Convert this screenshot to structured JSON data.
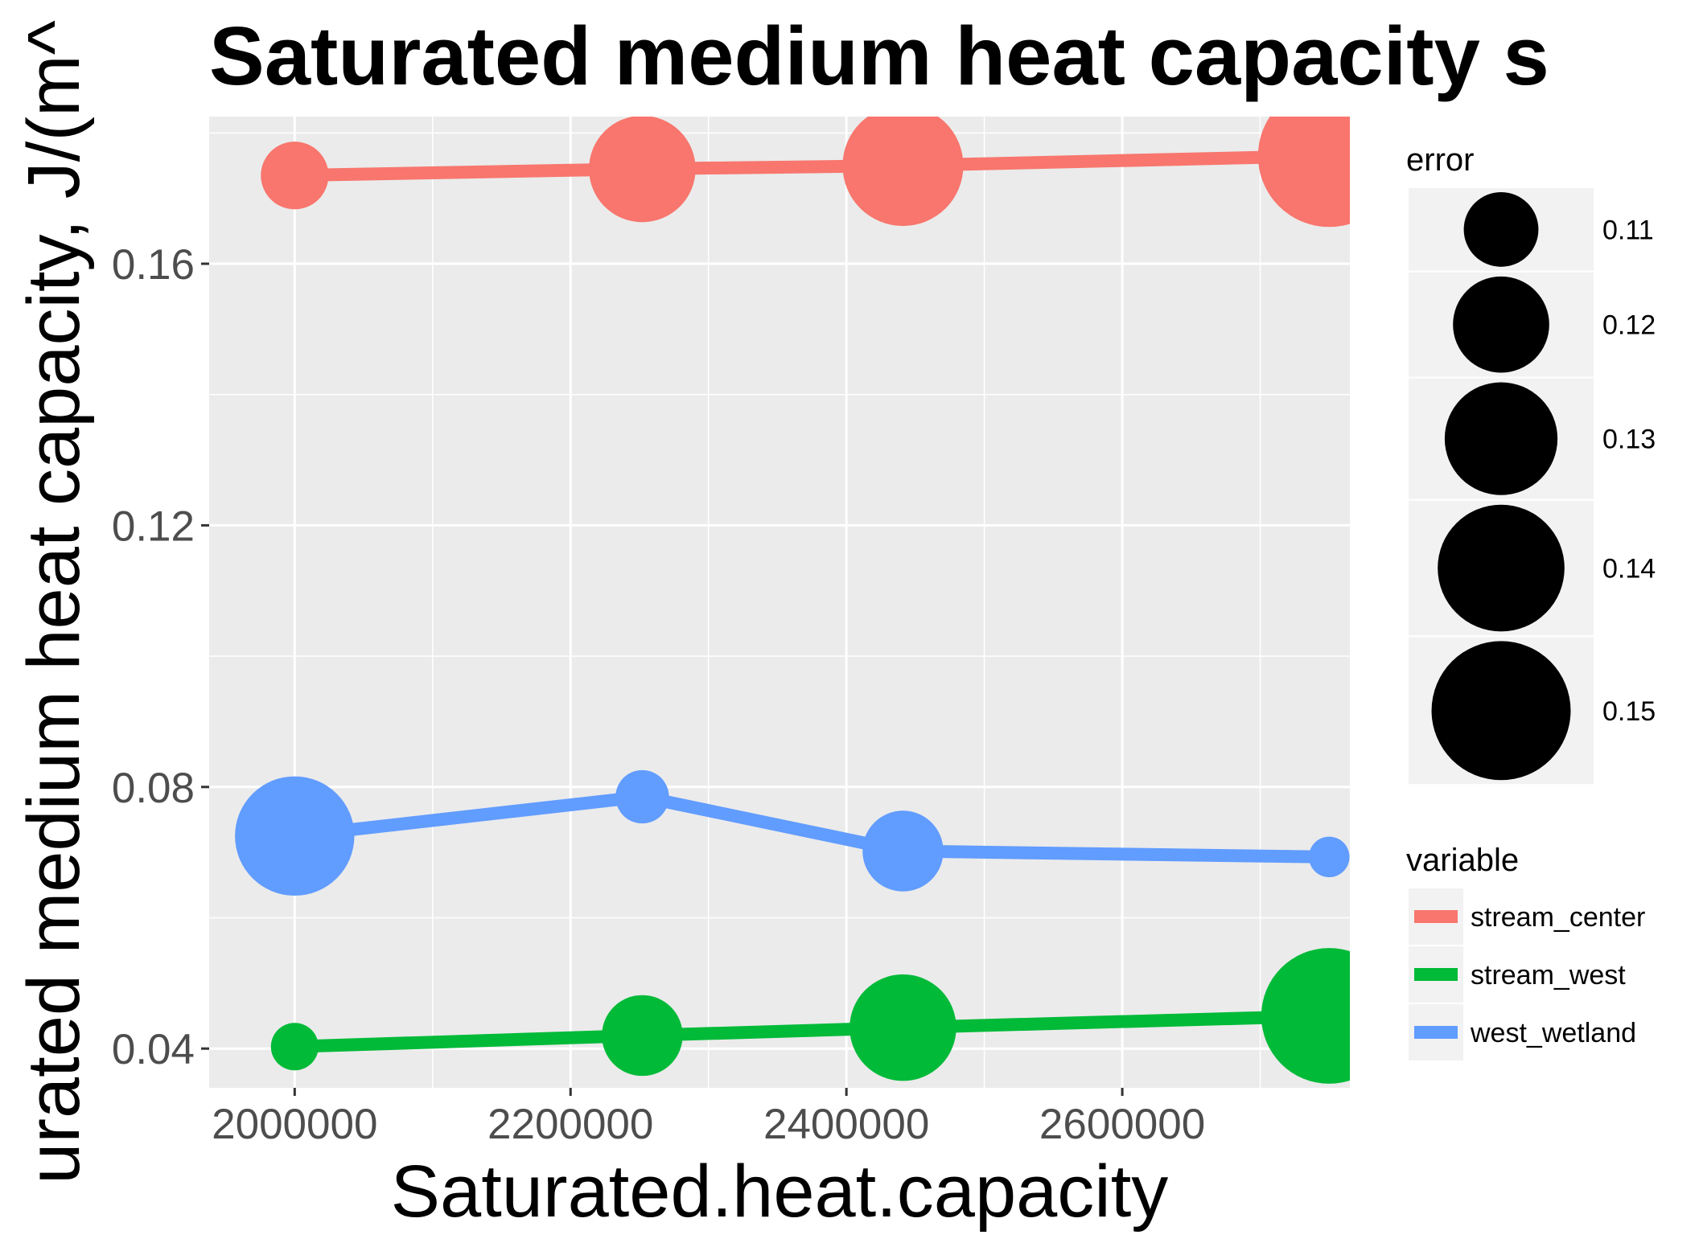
{
  "chart_data": {
    "type": "line",
    "title": "Saturated medium heat capacity s",
    "xlabel": "Saturated.heat.capacity",
    "ylabel": "urated medium heat capacity, J/(m^",
    "xlim": [
      1938000,
      2765000
    ],
    "ylim": [
      0.034,
      0.1825
    ],
    "x_ticks": [
      2000000,
      2200000,
      2400000,
      2600000
    ],
    "x_tick_labels": [
      "2000000",
      "2200000",
      "2400000",
      "2600000"
    ],
    "y_ticks": [
      0.04,
      0.08,
      0.12,
      0.16
    ],
    "y_tick_labels": [
      "0.04",
      "0.08",
      "0.12",
      "0.16"
    ],
    "grid": true,
    "legend_position": "right",
    "series": [
      {
        "name": "stream_center",
        "color": "#F8766D",
        "points": [
          {
            "x": 2000000,
            "y": 0.1735,
            "error": 0.1075
          },
          {
            "x": 2252000,
            "y": 0.1745,
            "error": 0.126
          },
          {
            "x": 2441000,
            "y": 0.175,
            "error": 0.1355
          },
          {
            "x": 2750000,
            "y": 0.1765,
            "error": 0.1528
          }
        ]
      },
      {
        "name": "stream_west",
        "color": "#00BA38",
        "points": [
          {
            "x": 2000000,
            "y": 0.0403,
            "error": 0.1023
          },
          {
            "x": 2252000,
            "y": 0.042,
            "error": 0.1125
          },
          {
            "x": 2441000,
            "y": 0.0432,
            "error": 0.126
          },
          {
            "x": 2750000,
            "y": 0.045,
            "error": 0.1472
          }
        ]
      },
      {
        "name": "west_wetland",
        "color": "#619CFF",
        "points": [
          {
            "x": 2000000,
            "y": 0.0725,
            "error": 0.1345
          },
          {
            "x": 2252000,
            "y": 0.0785,
            "error": 0.1035
          },
          {
            "x": 2441000,
            "y": 0.0702,
            "error": 0.1125
          },
          {
            "x": 2750000,
            "y": 0.0693,
            "error": 0.1012
          }
        ]
      }
    ],
    "size_legend": {
      "title": "error",
      "values": [
        0.11,
        0.12,
        0.13,
        0.14,
        0.15
      ],
      "labels": [
        "0.11",
        "0.12",
        "0.13",
        "0.14",
        "0.15"
      ]
    },
    "color_legend": {
      "title": "variable",
      "labels": [
        "stream_center",
        "stream_west",
        "west_wetland"
      ]
    }
  }
}
